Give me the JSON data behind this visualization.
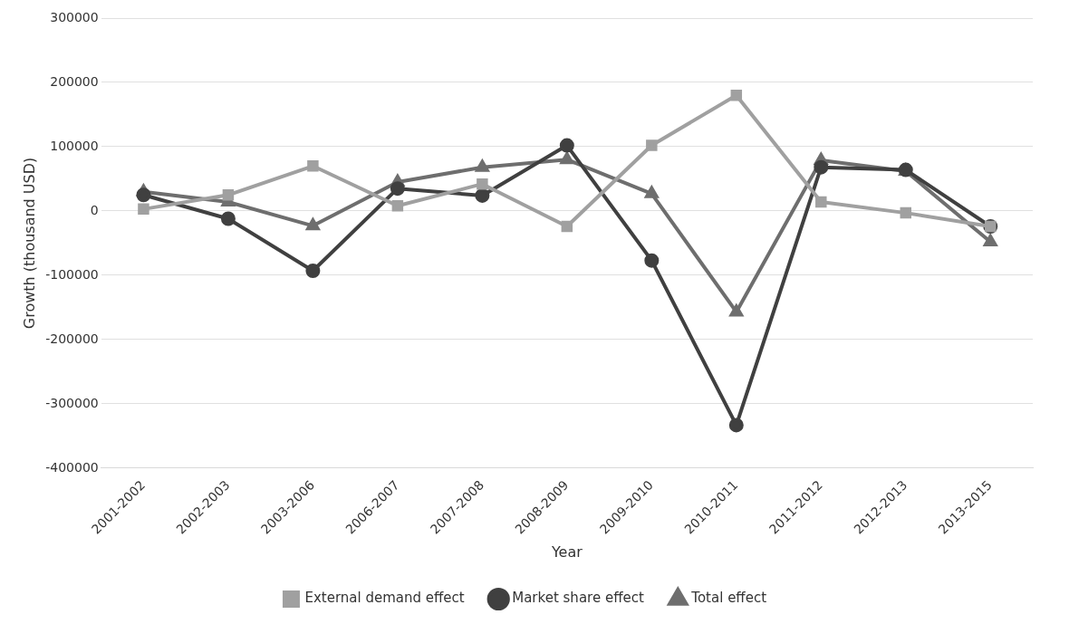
{
  "chart_data": {
    "type": "line",
    "xlabel": "Year",
    "ylabel": "Growth (thousand USD)",
    "categories": [
      "2001-2002",
      "2002-2003",
      "2003-2006",
      "2006-2007",
      "2007-2008",
      "2008-2009",
      "2009-2010",
      "2010-2011",
      "2011-2012",
      "2012-2013",
      "2013-2015"
    ],
    "series": [
      {
        "name": "External demand effect",
        "color": "#a0a0a0",
        "marker": "square",
        "values": [
          3000,
          25000,
          70000,
          8000,
          42000,
          -24000,
          102000,
          180000,
          14000,
          -3000,
          -24000
        ]
      },
      {
        "name": "Market share effect",
        "color": "#404040",
        "marker": "circle",
        "values": [
          25000,
          -12000,
          -93000,
          35000,
          24000,
          102000,
          -77000,
          -333000,
          68000,
          64000,
          -24000
        ]
      },
      {
        "name": "Total effect",
        "color": "#6e6e6e",
        "marker": "triangle",
        "values": [
          30000,
          14000,
          -23000,
          45000,
          68000,
          80000,
          27000,
          -157000,
          79000,
          62000,
          -48000
        ]
      }
    ],
    "ylim": [
      -400000,
      300000
    ],
    "yticks": [
      -400000,
      -300000,
      -200000,
      -100000,
      0,
      100000,
      200000,
      300000
    ],
    "grid": "y",
    "legend": "bottom"
  }
}
